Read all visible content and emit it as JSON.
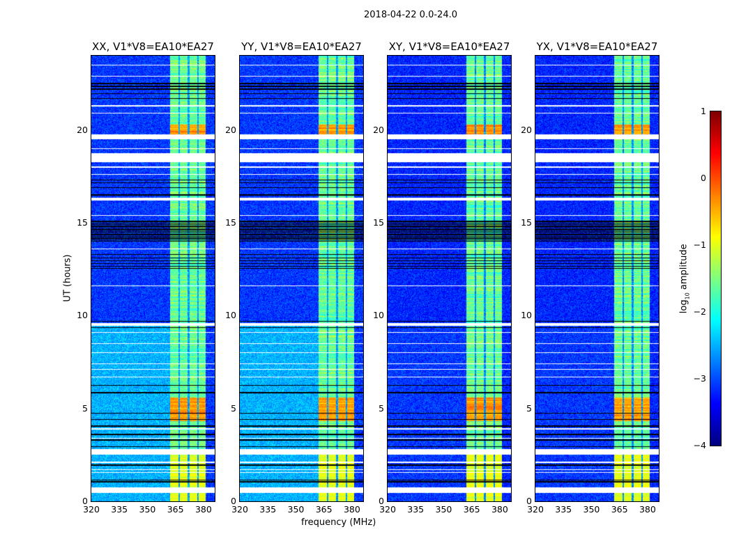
{
  "figure": {
    "title": "2018-04-22 0.0-24.0"
  },
  "chart_data": {
    "type": "heatmap",
    "title": "2018-04-22 0.0-24.0",
    "xlabel": "frequency (MHz)",
    "ylabel": "UT (hours)",
    "xlim": [
      320,
      386
    ],
    "ylim": [
      0,
      24
    ],
    "xticks": [
      "320",
      "335",
      "350",
      "365",
      "380"
    ],
    "yticks": [
      "0",
      "5",
      "10",
      "15",
      "20"
    ],
    "panels": [
      {
        "title": "XX, V1*V8=EA10*EA27",
        "background_log_amp": -3.1,
        "early_background_log_amp": -2.5
      },
      {
        "title": "YY, V1*V8=EA10*EA27",
        "background_log_amp": -3.1,
        "early_background_log_amp": -2.5
      },
      {
        "title": "XY, V1*V8=EA10*EA27",
        "background_log_amp": -3.2,
        "early_background_log_amp": -3.1
      },
      {
        "title": "YX, V1*V8=EA10*EA27",
        "background_log_amp": -3.2,
        "early_background_log_amp": -3.1
      }
    ],
    "signal_band_mhz": [
      362,
      381
    ],
    "signal_gaps_mhz": [
      367,
      372,
      377
    ],
    "flagged_hours": [
      [
        19.5,
        19.75
      ],
      [
        18.25,
        18.75
      ],
      [
        16.2,
        16.35
      ],
      [
        9.45,
        9.6
      ],
      [
        2.5,
        2.8
      ],
      [
        0.45,
        0.75
      ]
    ],
    "strong_signal_hours": [
      [
        19.7,
        20.3
      ],
      [
        4.3,
        5.6
      ]
    ],
    "colorbar": {
      "label_main": "log",
      "label_sub": "10",
      "label_rest": " amplitude",
      "range": [
        -4,
        1
      ],
      "ticks": [
        "1",
        "0",
        "−1",
        "−2",
        "−3",
        "−4"
      ],
      "colormap": "jet"
    }
  }
}
